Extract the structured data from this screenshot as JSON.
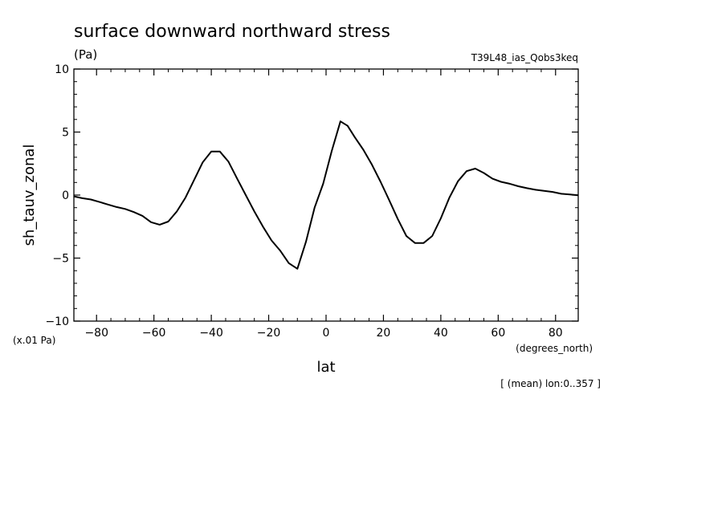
{
  "chart_data": {
    "type": "line",
    "title": "surface downward northward stress",
    "units": "(Pa)",
    "experiment": "T39L48_ias_Qobs3keq",
    "xlabel": "lat",
    "xunits": "(degrees_north)",
    "ylabel": "sh_tauv_zonal",
    "yscale_note": "(x.01 Pa)",
    "footnote": "[ (mean) lon:0..357 ]",
    "xlim": [
      -87.9,
      87.9
    ],
    "ylim": [
      -10,
      10
    ],
    "xticks": [
      -80,
      -60,
      -40,
      -20,
      0,
      20,
      40,
      60,
      80
    ],
    "xtick_labels": [
      "−80",
      "−60",
      "−40",
      "−20",
      "0",
      "20",
      "40",
      "60",
      "80"
    ],
    "yticks": [
      -10,
      -5,
      0,
      5,
      10
    ],
    "ytick_labels": [
      "−10",
      "−5",
      "0",
      "5",
      "10"
    ],
    "grid": false,
    "line_color": "#000000",
    "series": [
      {
        "x": [
          -87.9,
          -85,
          -82,
          -79,
          -76,
          -73,
          -70,
          -67,
          -64,
          -61,
          -58,
          -55,
          -52,
          -49,
          -46,
          -43,
          -40,
          -37,
          -34,
          -31,
          -28,
          -25,
          -22,
          -19,
          -16,
          -13,
          -10,
          -7,
          -4,
          -1,
          2,
          5,
          7.5,
          10,
          13,
          16,
          19,
          22,
          25,
          28,
          31,
          34,
          37,
          40,
          43,
          46,
          49,
          52,
          55,
          58,
          61,
          64,
          67,
          70,
          73,
          76,
          79,
          82,
          85,
          87.9
        ],
        "y": [
          -0.1,
          -0.25,
          -0.35,
          -0.55,
          -0.75,
          -0.95,
          -1.1,
          -1.35,
          -1.65,
          -2.15,
          -2.35,
          -2.1,
          -1.3,
          -0.2,
          1.2,
          2.6,
          3.45,
          3.45,
          2.65,
          1.3,
          0.0,
          -1.3,
          -2.5,
          -3.6,
          -4.4,
          -5.4,
          -5.85,
          -3.7,
          -1.0,
          0.9,
          3.5,
          5.85,
          5.5,
          4.6,
          3.6,
          2.4,
          1.05,
          -0.4,
          -1.9,
          -3.25,
          -3.8,
          -3.8,
          -3.25,
          -1.85,
          -0.2,
          1.1,
          1.9,
          2.1,
          1.75,
          1.3,
          1.05,
          0.9,
          0.7,
          0.55,
          0.42,
          0.33,
          0.25,
          0.1,
          0.05,
          -0.02
        ]
      }
    ]
  }
}
